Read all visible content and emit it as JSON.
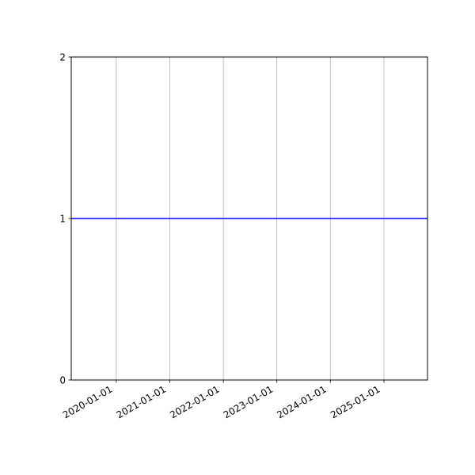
{
  "chart_data": {
    "type": "line",
    "title": "",
    "xlabel": "",
    "ylabel": "",
    "x_axis_type": "date",
    "xlim": [
      "2019-02-28",
      "2025-10-25"
    ],
    "ylim": [
      0,
      2
    ],
    "x_ticks": [
      "2020-01-01",
      "2021-01-01",
      "2022-01-01",
      "2023-01-01",
      "2024-01-01",
      "2025-01-01"
    ],
    "y_ticks": [
      "0",
      "1",
      "2"
    ],
    "grid": "vertical lines on x ticks",
    "legend": "none",
    "series": [
      {
        "x": [
          "2019-02-28",
          "2025-10-25"
        ],
        "y": [
          1,
          1
        ],
        "color": "#0000ff"
      }
    ],
    "colors": {
      "grid": "#b0b0b0",
      "axes": "#000000"
    }
  }
}
